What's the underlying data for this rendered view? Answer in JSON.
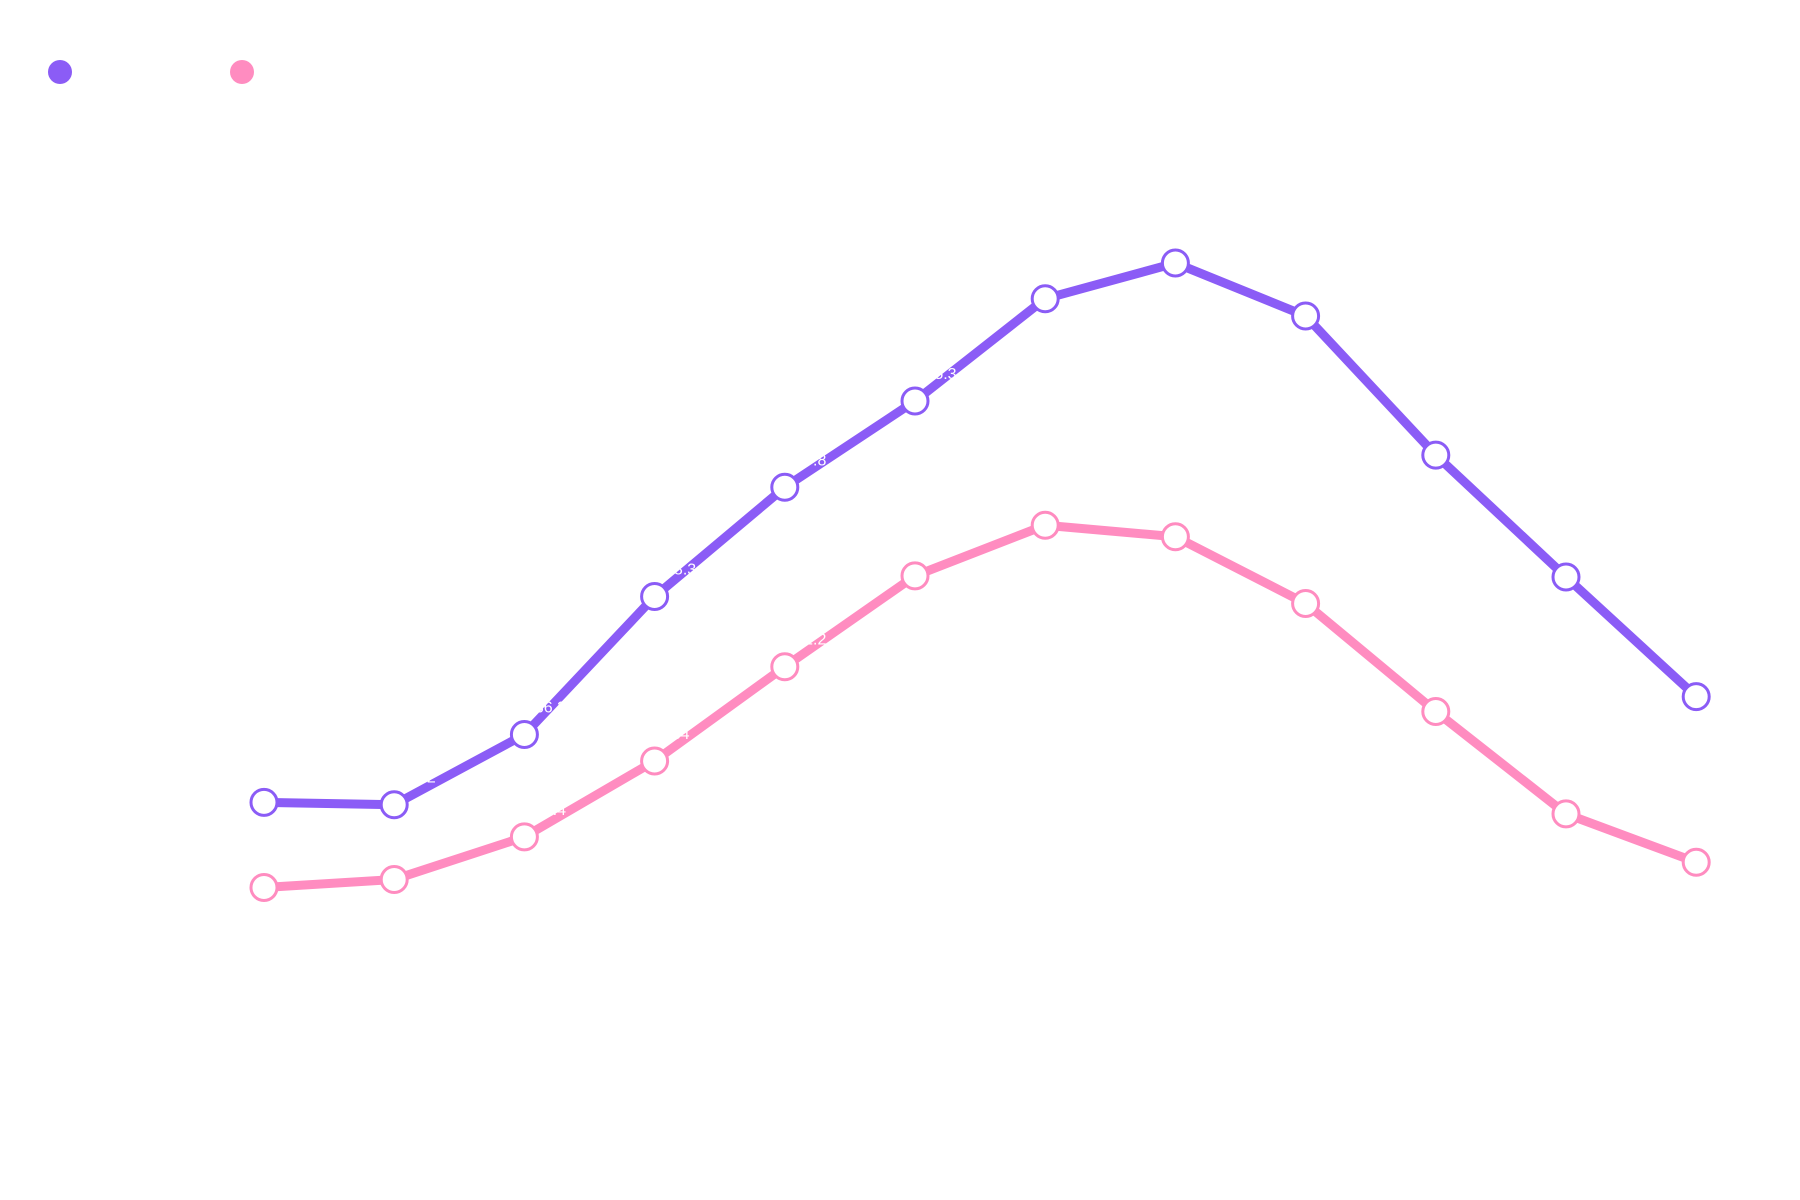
{
  "chart_data": {
    "type": "line",
    "title": "",
    "xlabel": "",
    "ylabel": "",
    "ylim": [
      0,
      100
    ],
    "grid": false,
    "legend_position": "top-left",
    "categories": [
      "",
      "",
      "",
      "",
      "",
      "",
      "",
      "",
      "",
      "",
      "",
      ""
    ],
    "series": [
      {
        "color": "#8b5cf6",
        "values": [
          30.4,
          30.2,
          36.3,
          48.3,
          57.8,
          65.3,
          74.2,
          77.3,
          72.7,
          60.6,
          50.0,
          39.6
        ]
      },
      {
        "color": "#ff8cc0",
        "values": [
          23.0,
          23.7,
          27.4,
          34.0,
          42.2,
          50.1,
          54.5,
          53.5,
          47.7,
          38.3,
          29.4,
          25.2
        ]
      }
    ]
  }
}
